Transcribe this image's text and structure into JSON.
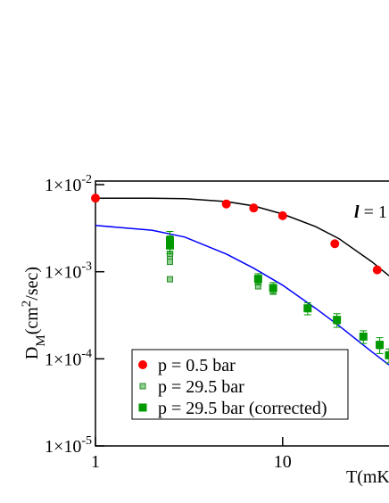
{
  "chart_data": {
    "type": "scatter",
    "xlabel": "T(mK)",
    "ylabel": [
      {
        "text": "D"
      },
      {
        "text": "M",
        "role": "sub"
      },
      {
        "text": "(cm"
      },
      {
        "text": "2",
        "role": "sup"
      },
      {
        "text": "/sec)"
      }
    ],
    "annotation": {
      "symbol": "l",
      "text": " = 1"
    },
    "xlog": true,
    "ylog": true,
    "xlim": [
      1,
      37
    ],
    "ylim": [
      1e-05,
      0.011
    ],
    "xticks": [
      1,
      10
    ],
    "yticks": [
      {
        "value": 1e-05,
        "label": "1×10",
        "exp": "-5"
      },
      {
        "value": 0.0001,
        "label": "1×10",
        "exp": "-4"
      },
      {
        "value": 0.001,
        "label": "1×10",
        "exp": "-3"
      },
      {
        "value": 0.01,
        "label": "1×10",
        "exp": "-2"
      }
    ],
    "series": [
      {
        "name": "p =  0.5 bar",
        "marker": "circle",
        "color": "#ff0000",
        "x": [
          1,
          5,
          7,
          10,
          19,
          32
        ],
        "values": [
          0.007,
          0.006,
          0.0054,
          0.0044,
          0.0021,
          0.00105
        ]
      },
      {
        "name": "p = 29.5 bar",
        "marker": "square-light",
        "color": "#8fd08f",
        "x": [
          2.5,
          2.5,
          2.5,
          2.5,
          2.5,
          2.5,
          7.4,
          7.4,
          8.9,
          8.9,
          13.6,
          19.5,
          27,
          33
        ],
        "values": [
          0.0024,
          0.0021,
          0.0016,
          0.0014,
          0.0013,
          0.00082,
          0.00075,
          0.00068,
          0.00065,
          0.0006,
          0.00038,
          0.00027,
          0.00018,
          0.00014
        ]
      },
      {
        "name": "p = 29.5 bar (corrected)",
        "marker": "square",
        "color": "#009900",
        "x": [
          2.5,
          2.5,
          7.4,
          8.9,
          13.6,
          19.5,
          27,
          33,
          37
        ],
        "values": [
          0.0023,
          0.002,
          0.00083,
          0.00065,
          0.00038,
          0.00028,
          0.00018,
          0.000145,
          0.00011
        ],
        "errors": [
          0.0006,
          0.0004,
          0.00012,
          0.0001,
          6e-05,
          5e-05,
          3e-05,
          3e-05,
          2e-05
        ]
      }
    ],
    "curves": [
      {
        "color": "#000000",
        "x": [
          1,
          2,
          3,
          5,
          7,
          10,
          15,
          20,
          30,
          37
        ],
        "values": [
          0.007,
          0.007,
          0.0069,
          0.0064,
          0.0057,
          0.0046,
          0.0033,
          0.0024,
          0.0013,
          0.0009
        ]
      },
      {
        "color": "#0000ff",
        "x": [
          1,
          2,
          3,
          5,
          7,
          10,
          15,
          20,
          30,
          37
        ],
        "values": [
          0.0034,
          0.003,
          0.0025,
          0.0016,
          0.0011,
          0.0007,
          0.00038,
          0.00024,
          0.00012,
          8.5e-05
        ]
      }
    ]
  }
}
